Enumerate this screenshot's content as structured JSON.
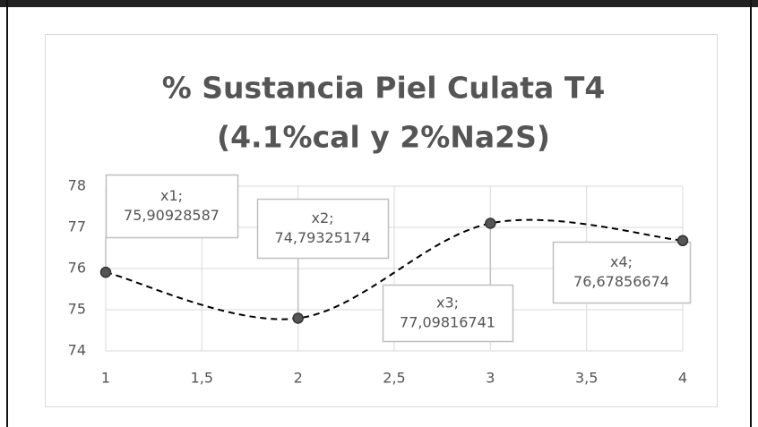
{
  "chart_data": {
    "type": "scatter",
    "title": [
      "% Sustancia Piel Culata T4",
      "(4.1%cal y 2%Na2S)"
    ],
    "x": [
      1,
      2,
      3,
      4
    ],
    "series": [
      {
        "name": "x",
        "color": "#000000",
        "values": [
          75.90928587,
          74.79325174,
          77.09816741,
          76.67856674
        ],
        "value_labels": [
          "x1; 75,90928587",
          "x2; 74,79325174",
          "x3; 77,09816741",
          "x4; 76,67856674"
        ]
      }
    ],
    "xlim": [
      1,
      4
    ],
    "xticks": [
      1,
      {
        "value": 1.5,
        "label": "1,5"
      },
      2,
      {
        "value": 2.5,
        "label": "2,5"
      },
      3,
      {
        "value": 3.5,
        "label": "3,5"
      },
      4
    ],
    "ylim": [
      74,
      78
    ],
    "yticks": [
      74,
      75,
      76,
      77,
      78
    ],
    "grid": true,
    "line_style": "dashed smooth"
  }
}
